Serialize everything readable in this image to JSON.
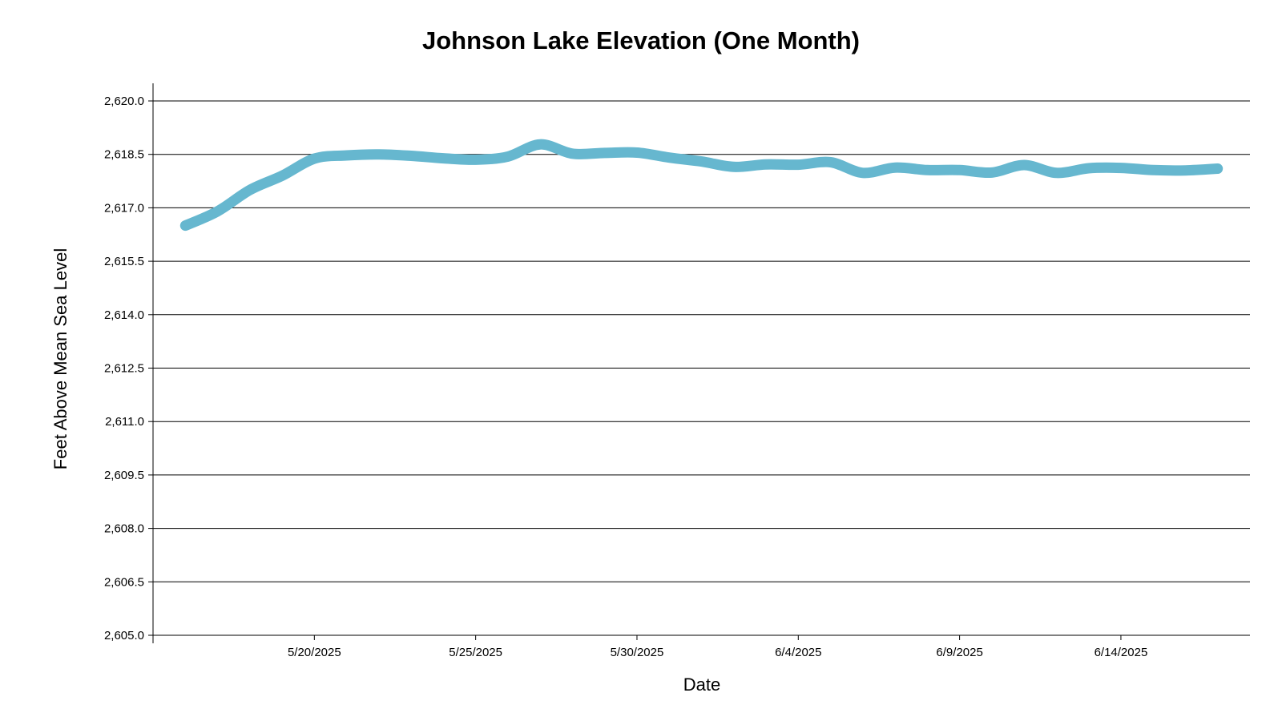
{
  "chart_data": {
    "type": "line",
    "title": "Johnson Lake Elevation (One Month)",
    "xlabel": "Date",
    "ylabel": "Feet Above Mean Sea Level",
    "x_type": "date",
    "xlim": [
      "2025-05-15",
      "2025-06-18"
    ],
    "ylim": [
      2605.0,
      2620.0
    ],
    "y_ticks": [
      2605.0,
      2606.5,
      2608.0,
      2609.5,
      2611.0,
      2612.5,
      2614.0,
      2615.5,
      2617.0,
      2618.5,
      2620.0
    ],
    "y_tick_labels": [
      "2,605.0",
      "2,606.5",
      "2,608.0",
      "2,609.5",
      "2,611.0",
      "2,612.5",
      "2,614.0",
      "2,615.5",
      "2,617.0",
      "2,618.5",
      "2,620.0"
    ],
    "x_ticks": [
      "2025-05-20",
      "2025-05-25",
      "2025-05-30",
      "2025-06-04",
      "2025-06-09",
      "2025-06-14"
    ],
    "x_tick_labels": [
      "5/20/2025",
      "5/25/2025",
      "5/30/2025",
      "6/4/2025",
      "6/9/2025",
      "6/14/2025"
    ],
    "grid": "horizontal",
    "legend": "none",
    "series_color": "#66b7cf",
    "series": [
      {
        "x": [
          "2025-05-16",
          "2025-05-17",
          "2025-05-18",
          "2025-05-19",
          "2025-05-20",
          "2025-05-21",
          "2025-05-22",
          "2025-05-23",
          "2025-05-24",
          "2025-05-25",
          "2025-05-26",
          "2025-05-27",
          "2025-05-28",
          "2025-05-29",
          "2025-05-30",
          "2025-05-31",
          "2025-06-01",
          "2025-06-02",
          "2025-06-03",
          "2025-06-04",
          "2025-06-05",
          "2025-06-06",
          "2025-06-07",
          "2025-06-08",
          "2025-06-09",
          "2025-06-10",
          "2025-06-11",
          "2025-06-12",
          "2025-06-13",
          "2025-06-14",
          "2025-06-15",
          "2025-06-16",
          "2025-06-17"
        ],
        "values": [
          2616.5,
          2616.9,
          2617.5,
          2617.9,
          2618.38,
          2618.47,
          2618.5,
          2618.46,
          2618.39,
          2618.35,
          2618.44,
          2618.78,
          2618.52,
          2618.54,
          2618.55,
          2618.41,
          2618.3,
          2618.15,
          2618.22,
          2618.21,
          2618.28,
          2617.98,
          2618.13,
          2618.06,
          2618.06,
          2617.99,
          2618.2,
          2617.98,
          2618.11,
          2618.12,
          2618.06,
          2618.05,
          2618.1
        ]
      }
    ]
  }
}
